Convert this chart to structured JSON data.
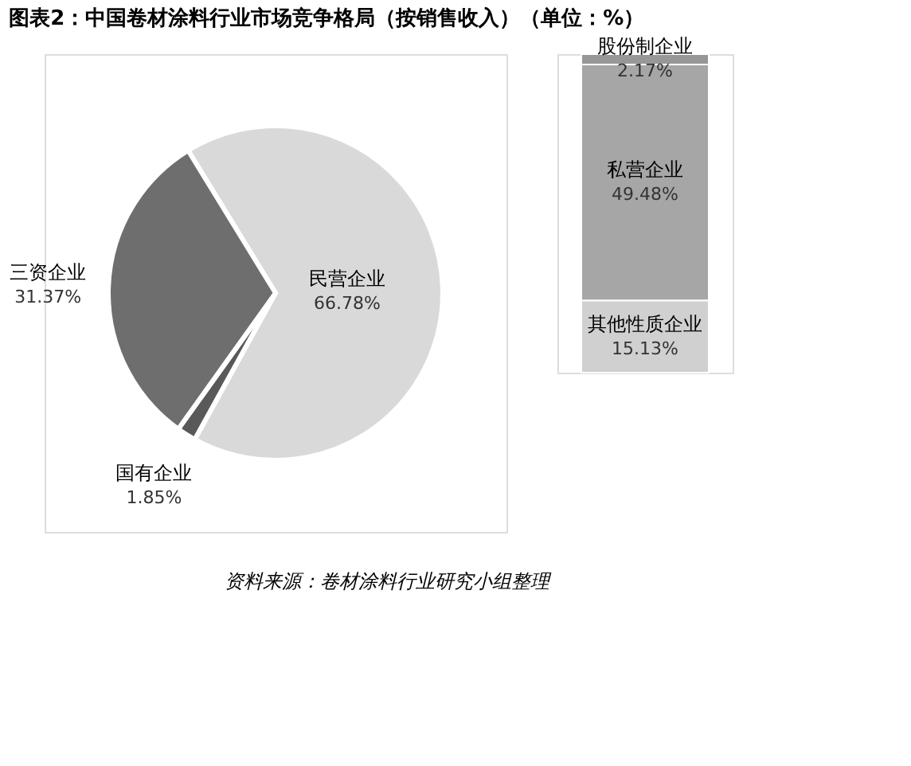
{
  "chart_data": [
    {
      "type": "pie",
      "title": "图表2：中国卷材涂料行业市场竞争格局（按销售收入）（单位：%）",
      "categories": [
        "民营企业",
        "国有企业",
        "三资企业"
      ],
      "values": [
        66.78,
        1.85,
        31.37
      ],
      "colors": [
        "#d9d9d9",
        "#595959",
        "#6e6e6e"
      ],
      "value_labels": [
        "66.78%",
        "1.85%",
        "31.37%"
      ],
      "legend": false
    },
    {
      "type": "bar",
      "stacked": true,
      "categories": [
        null
      ],
      "legend": false,
      "annotations": [
        "资料来源：卷材涂料行业研究小组整理"
      ],
      "series": [
        {
          "name": "其他性质企业",
          "color": "#d0d0d0",
          "values": [
            15.13
          ],
          "value_labels": [
            "15.13%"
          ]
        },
        {
          "name": "私营企业",
          "color": "#a6a6a6",
          "values": [
            49.48
          ],
          "value_labels": [
            "49.48%"
          ]
        },
        {
          "name": "股份制企业",
          "color": "#979797",
          "values": [
            2.17
          ],
          "value_labels": [
            "2.17%"
          ]
        }
      ]
    }
  ]
}
